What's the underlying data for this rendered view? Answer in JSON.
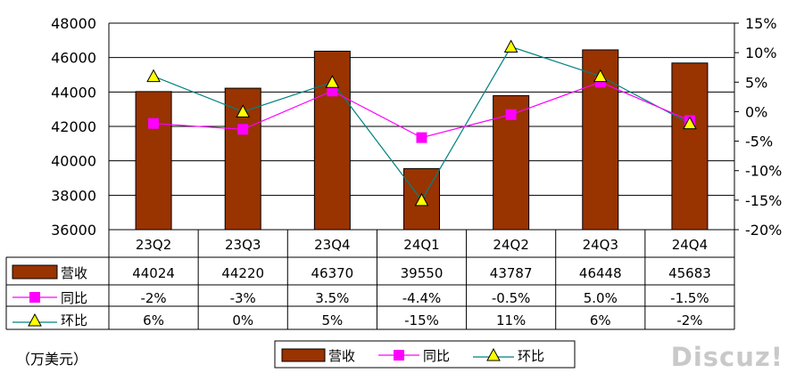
{
  "chart_data": {
    "type": "bar+line",
    "categories": [
      "23Q2",
      "23Q3",
      "23Q4",
      "24Q1",
      "24Q2",
      "24Q3",
      "24Q4"
    ],
    "bars": {
      "name": "营收",
      "values": [
        44024,
        44220,
        46370,
        39550,
        43787,
        46448,
        45683
      ],
      "labels": [
        "44024",
        "44220",
        "46370",
        "39550",
        "43787",
        "46448",
        "45683"
      ]
    },
    "lines": [
      {
        "name": "同比",
        "values": [
          -2,
          -3,
          3.5,
          -4.4,
          -0.5,
          5.0,
          -1.5
        ],
        "labels": [
          "-2%",
          "-3%",
          "3.5%",
          "-4.4%",
          "-0.5%",
          "5.0%",
          "-1.5%"
        ]
      },
      {
        "name": "环比",
        "values": [
          6,
          0,
          5,
          -15,
          11,
          6,
          -2
        ],
        "labels": [
          "6%",
          "0%",
          "5%",
          "-15%",
          "11%",
          "6%",
          "-2%"
        ]
      }
    ],
    "y_left": {
      "range": [
        36000,
        48000
      ],
      "ticks": [
        "36000",
        "38000",
        "40000",
        "42000",
        "44000",
        "46000",
        "48000"
      ]
    },
    "y_right": {
      "range": [
        -20,
        15
      ],
      "ticks": [
        "-20%",
        "-15%",
        "-10%",
        "-5%",
        "0%",
        "5%",
        "10%",
        "15%"
      ]
    },
    "grid": "horizontal",
    "legend_position": "bottom",
    "colors": {
      "bar": "#993300",
      "yoy": "#ff00ff",
      "qoq_line": "#008080",
      "qoq_marker": "#ffff00"
    }
  },
  "unit_label": "（万美元）",
  "watermark": "Discuz!"
}
